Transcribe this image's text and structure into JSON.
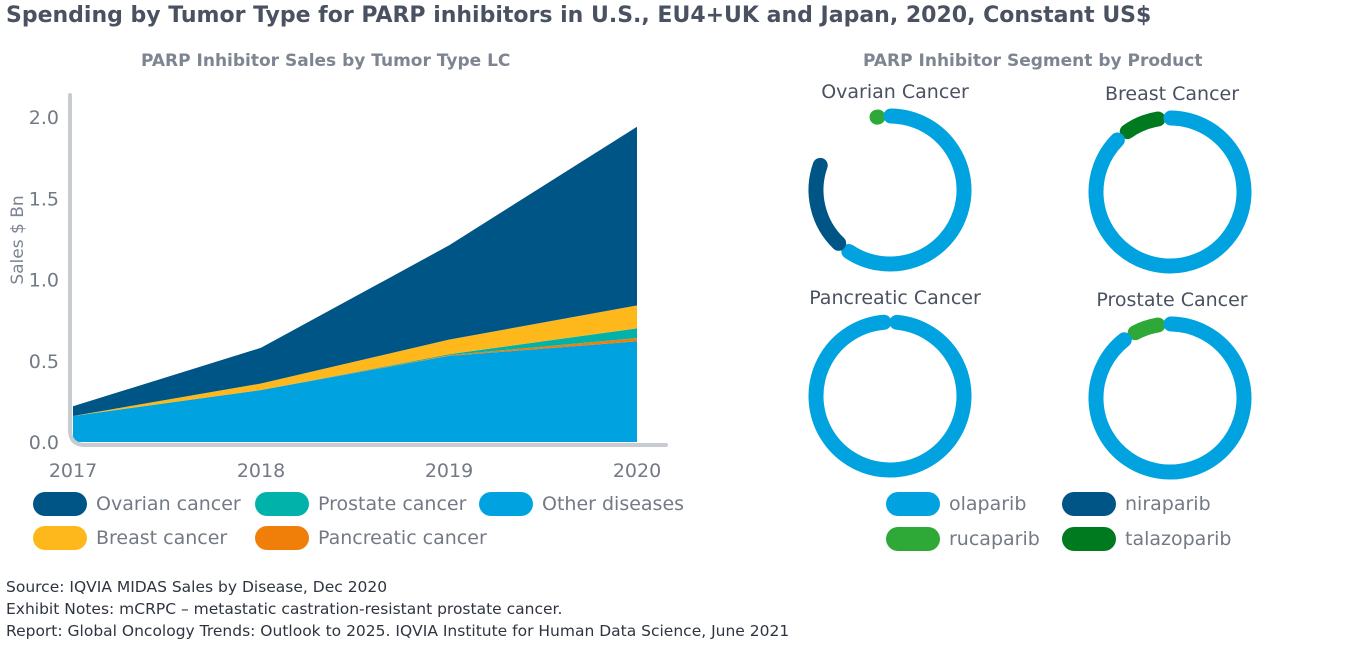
{
  "title": "Spending by Tumor Type for PARP inhibitors in U.S., EU4+UK and Japan, 2020, Constant US$",
  "left_subtitle": "PARP Inhibitor Sales by Tumor Type LC",
  "right_subtitle": "PARP Inhibitor Segment by Product",
  "chart_data": [
    {
      "type": "area",
      "stacked": true,
      "title": "PARP Inhibitor Sales by Tumor Type LC",
      "ylabel": "Sales $ Bn",
      "xlabel": "",
      "x": [
        "2017",
        "2018",
        "2019",
        "2020"
      ],
      "yticks": [
        "0.0",
        "0.5",
        "1.0",
        "1.5",
        "2.0"
      ],
      "ylim": [
        0,
        2.1
      ],
      "grid": false,
      "legend_position": "bottom",
      "series": [
        {
          "name": "Other diseases",
          "color": "#00a3e0",
          "values": [
            0.16,
            0.32,
            0.53,
            0.62
          ]
        },
        {
          "name": "Pancreatic cancer",
          "color": "#f07f09",
          "values": [
            0.0,
            0.0,
            0.005,
            0.02
          ]
        },
        {
          "name": "Prostate cancer",
          "color": "#00b2a9",
          "values": [
            0.0,
            0.0,
            0.005,
            0.06
          ]
        },
        {
          "name": "Breast cancer",
          "color": "#ffb81c",
          "values": [
            0.0,
            0.04,
            0.09,
            0.14
          ]
        },
        {
          "name": "Ovarian cancer",
          "color": "#005587",
          "values": [
            0.06,
            0.22,
            0.58,
            1.1
          ]
        }
      ],
      "legend_order": [
        "Ovarian cancer",
        "Prostate cancer",
        "Other diseases",
        "Breast cancer",
        "Pancreatic cancer"
      ]
    },
    {
      "type": "pie",
      "subtype": "donut",
      "title": "PARP Inhibitor Segment by Product",
      "legend_position": "bottom",
      "products": [
        {
          "name": "olaparib",
          "color": "#00a3e0"
        },
        {
          "name": "niraparib",
          "color": "#005587"
        },
        {
          "name": "rucaparib",
          "color": "#2ea836"
        },
        {
          "name": "talazoparib",
          "color": "#007a1e"
        }
      ],
      "donuts": [
        {
          "label": "Ovarian Cancer",
          "slices": [
            {
              "product": "rucaparib",
              "share": 0.03
            },
            {
              "product": "olaparib",
              "share": 0.62
            },
            {
              "product": "niraparib",
              "share": 0.21
            }
          ]
        },
        {
          "label": "Breast Cancer",
          "slices": [
            {
              "product": "talazoparib",
              "share": 0.1
            },
            {
              "product": "olaparib",
              "share": 0.9
            }
          ]
        },
        {
          "label": "Pancreatic Cancer",
          "slices": [
            {
              "product": "olaparib",
              "share": 1.0
            }
          ]
        },
        {
          "label": "Prostate Cancer",
          "slices": [
            {
              "product": "rucaparib",
              "share": 0.08
            },
            {
              "product": "olaparib",
              "share": 0.92
            }
          ]
        }
      ]
    }
  ],
  "notes": [
    "Source: IQVIA MIDAS Sales by Disease, Dec 2020",
    "Exhibit Notes: mCRPC – metastatic castration-resistant prostate cancer.",
    "Report: Global Oncology Trends: Outlook to 2025. IQVIA Institute for Human Data Science, June 2021"
  ]
}
